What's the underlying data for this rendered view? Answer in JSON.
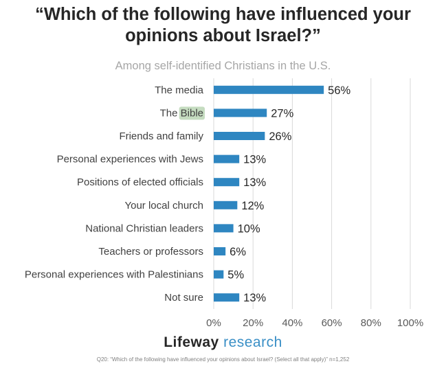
{
  "title": "“Which of the following have influenced your opinions about Israel?”",
  "subtitle": "Among self-identified Christians in the U.S.",
  "brand": {
    "part1": "Lifeway",
    "part2": "research"
  },
  "footnote": "Q20: “Which of the following have influenced your opinions about Israel? (Select all that apply)” n=1,252",
  "colors": {
    "bar": "#2e86c1",
    "highlight": "#c5dcc0",
    "grid": "#d9d9d9"
  },
  "chart_data": {
    "type": "bar",
    "orientation": "horizontal",
    "categories": [
      "The media",
      "The Bible",
      "Friends and family",
      "Personal experiences with Jews",
      "Positions of elected officials",
      "Your local church",
      "National Christian leaders",
      "Teachers or professors",
      "Personal experiences with Palestinians",
      "Not sure"
    ],
    "values": [
      56,
      27,
      26,
      13,
      13,
      12,
      10,
      6,
      5,
      13
    ],
    "value_labels": [
      "56%",
      "27%",
      "26%",
      "13%",
      "13%",
      "12%",
      "10%",
      "6%",
      "5%",
      "13%"
    ],
    "highlighted_word": {
      "category_index": 1,
      "word": "Bible"
    },
    "xlim": [
      0,
      100
    ],
    "xticks": [
      0,
      20,
      40,
      60,
      80,
      100
    ],
    "xtick_labels": [
      "0%",
      "20%",
      "40%",
      "60%",
      "80%",
      "100%"
    ],
    "xlabel": "",
    "ylabel": "",
    "grid": true,
    "legend": "none"
  }
}
